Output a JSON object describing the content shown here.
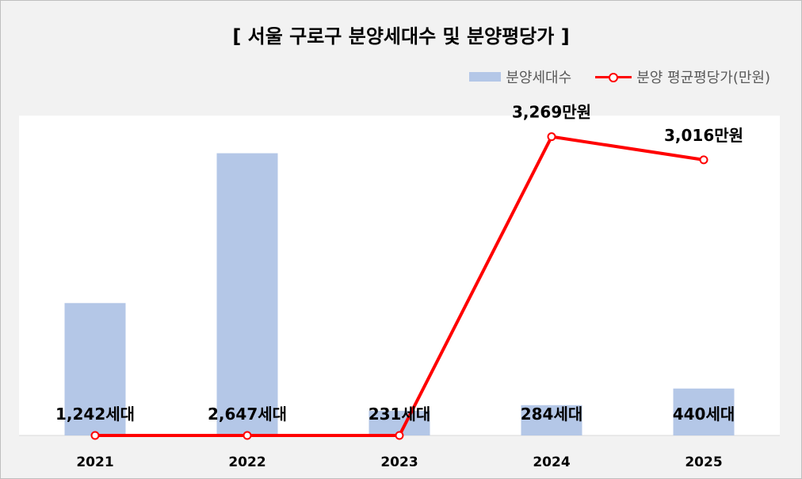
{
  "chart_data": {
    "type": "bar",
    "title": "[ 서울 구로구 분양세대수 및 분양평당가 ]",
    "categories": [
      "2021",
      "2022",
      "2023",
      "2024",
      "2025"
    ],
    "series": [
      {
        "name": "분양세대수",
        "type": "bar",
        "values": [
          1242,
          2647,
          231,
          284,
          440
        ],
        "labels": [
          "1,242세대",
          "2,647세대",
          "231세대",
          "284세대",
          "440세대"
        ],
        "color": "#b4c7e7",
        "ylim": [
          0,
          3000
        ]
      },
      {
        "name": "분양 평균평당가(만원)",
        "type": "line",
        "values": [
          0,
          0,
          0,
          3269,
          3016
        ],
        "labels": [
          "",
          "",
          "",
          "3,269만원",
          "3,016만원"
        ],
        "color": "#ff0000",
        "ylim": [
          0,
          3500
        ]
      }
    ],
    "legend_position": "top-right",
    "grid": false
  }
}
